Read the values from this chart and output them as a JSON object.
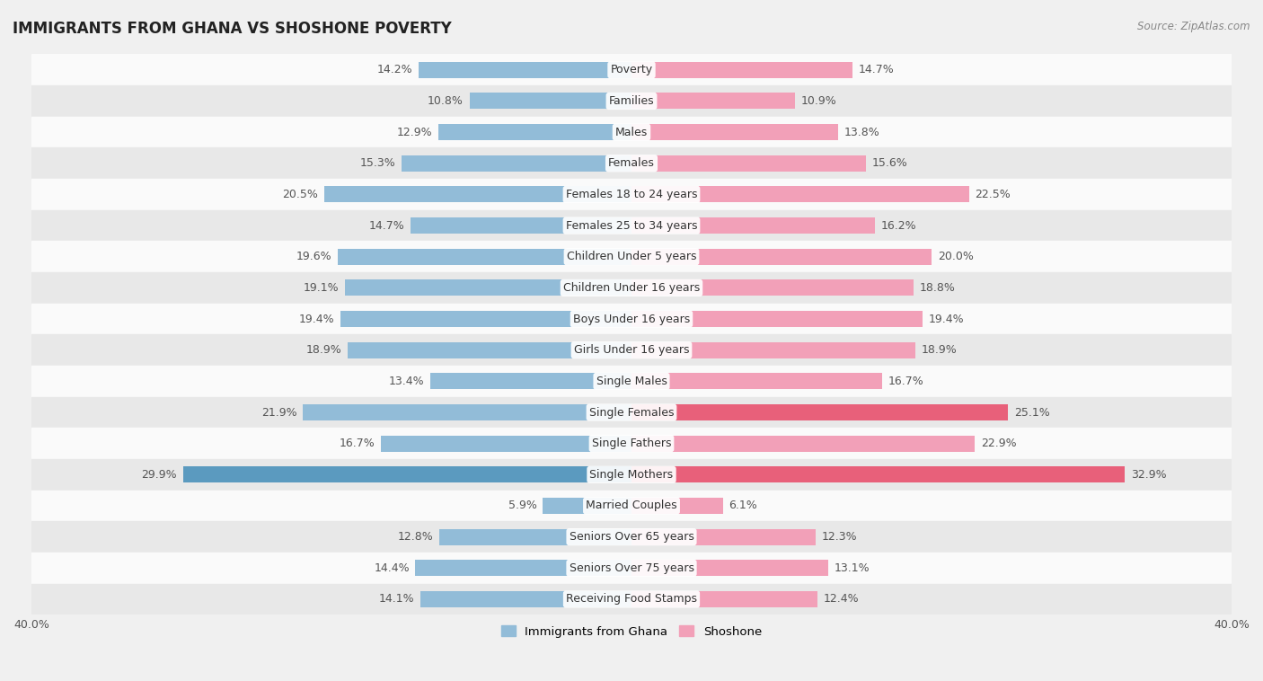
{
  "title": "IMMIGRANTS FROM GHANA VS SHOSHONE POVERTY",
  "source": "Source: ZipAtlas.com",
  "categories": [
    "Poverty",
    "Families",
    "Males",
    "Females",
    "Females 18 to 24 years",
    "Females 25 to 34 years",
    "Children Under 5 years",
    "Children Under 16 years",
    "Boys Under 16 years",
    "Girls Under 16 years",
    "Single Males",
    "Single Females",
    "Single Fathers",
    "Single Mothers",
    "Married Couples",
    "Seniors Over 65 years",
    "Seniors Over 75 years",
    "Receiving Food Stamps"
  ],
  "ghana_values": [
    14.2,
    10.8,
    12.9,
    15.3,
    20.5,
    14.7,
    19.6,
    19.1,
    19.4,
    18.9,
    13.4,
    21.9,
    16.7,
    29.9,
    5.9,
    12.8,
    14.4,
    14.1
  ],
  "shoshone_values": [
    14.7,
    10.9,
    13.8,
    15.6,
    22.5,
    16.2,
    20.0,
    18.8,
    19.4,
    18.9,
    16.7,
    25.1,
    22.9,
    32.9,
    6.1,
    12.3,
    13.1,
    12.4
  ],
  "ghana_color": "#92bcd8",
  "shoshone_color": "#f2a0b8",
  "ghana_highlight_color": "#5b9abf",
  "shoshone_highlight_color": "#e8607a",
  "axis_max": 40.0,
  "bar_height": 0.52,
  "bg_color": "#f0f0f0",
  "row_white_color": "#fafafa",
  "row_gray_color": "#e8e8e8",
  "label_fontsize": 9.0,
  "title_fontsize": 12,
  "source_fontsize": 8.5,
  "ghana_highlight_indices": [
    13
  ],
  "shoshone_highlight_indices": [
    11,
    13
  ]
}
